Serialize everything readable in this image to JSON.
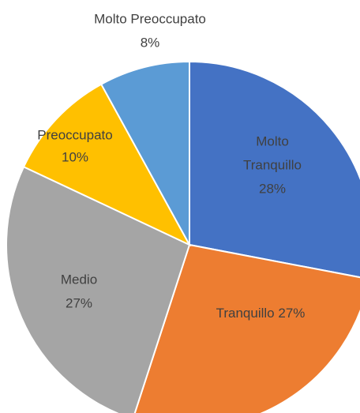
{
  "chart_data": {
    "type": "pie",
    "categories": [
      "Molto Tranquillo",
      "Tranquillo",
      "Medio",
      "Preoccupato",
      "Molto Preoccupato"
    ],
    "values": [
      28,
      27,
      27,
      10,
      8
    ],
    "value_labels": [
      "28%",
      "27%",
      "27%",
      "10%",
      "8%"
    ],
    "colors": [
      "#4472c4",
      "#ed7d31",
      "#a5a5a5",
      "#ffc000",
      "#5b9bd5"
    ]
  }
}
